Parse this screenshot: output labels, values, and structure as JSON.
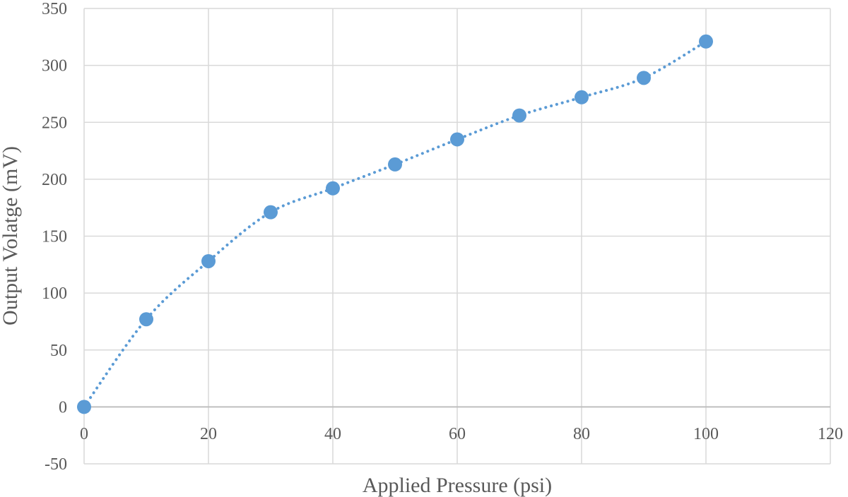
{
  "chart_data": {
    "type": "scatter",
    "title": "",
    "xlabel": "Applied Pressure (psi)",
    "ylabel": "Output Volatge (mV)",
    "xlim": [
      0,
      120
    ],
    "ylim": [
      -50,
      350
    ],
    "xticks": [
      0,
      20,
      40,
      60,
      80,
      100,
      120
    ],
    "yticks": [
      -50,
      0,
      50,
      100,
      150,
      200,
      250,
      300,
      350
    ],
    "grid": true,
    "legend": "none",
    "series": [
      {
        "color": "#5b9bd5",
        "trendline": "dotted",
        "x": [
          0,
          10,
          20,
          30,
          40,
          50,
          60,
          70,
          80,
          90,
          100
        ],
        "y": [
          0,
          77,
          128,
          171,
          192,
          213,
          235,
          256,
          272,
          289,
          321
        ]
      }
    ]
  }
}
